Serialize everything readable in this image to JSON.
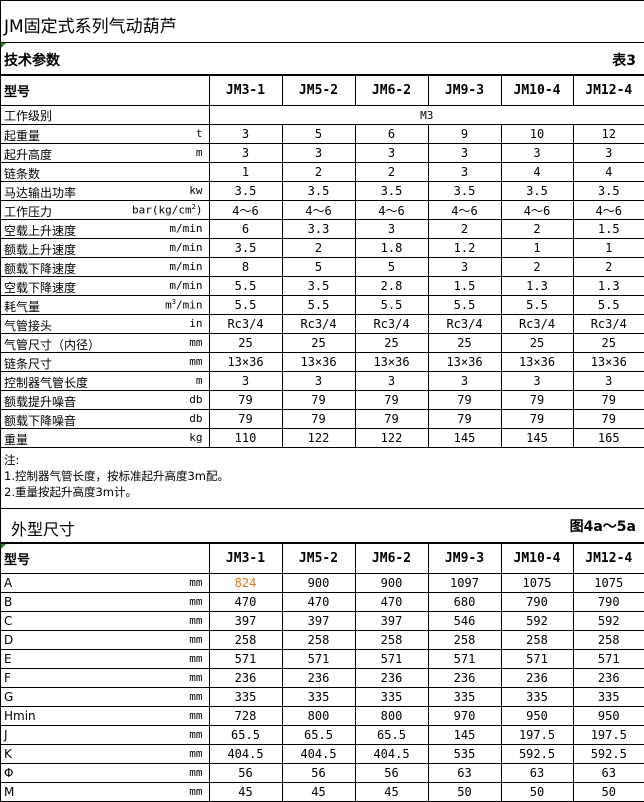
{
  "title": "JM固定式系列气动葫芦",
  "tech": {
    "section_title": "技术参数",
    "table_ref": "表3",
    "header_label": "型号",
    "models": [
      "JM3-1",
      "JM5-2",
      "JM6-2",
      "JM9-3",
      "JM10-4",
      "JM12-4"
    ],
    "work_class": {
      "label": "工作级别",
      "value": "M3"
    },
    "rows": [
      {
        "label": "起重量",
        "unit": "t",
        "values": [
          "3",
          "5",
          "6",
          "9",
          "10",
          "12"
        ]
      },
      {
        "label": "起升高度",
        "unit": "m",
        "values": [
          "3",
          "3",
          "3",
          "3",
          "3",
          "3"
        ]
      },
      {
        "label": "链条数",
        "unit": "",
        "values": [
          "1",
          "2",
          "2",
          "3",
          "4",
          "4"
        ]
      },
      {
        "label": "马达输出功率",
        "unit": "kw",
        "values": [
          "3.5",
          "3.5",
          "3.5",
          "3.5",
          "3.5",
          "3.5"
        ]
      },
      {
        "label": "工作压力",
        "unit": "bar(kg/cm²)",
        "values": [
          "4～6",
          "4～6",
          "4～6",
          "4～6",
          "4～6",
          "4～6"
        ]
      },
      {
        "label": "空载上升速度",
        "unit": "m/min",
        "values": [
          "6",
          "3.3",
          "3",
          "2",
          "2",
          "1.5"
        ]
      },
      {
        "label": "额载上升速度",
        "unit": "m/min",
        "values": [
          "3.5",
          "2",
          "1.8",
          "1.2",
          "1",
          "1"
        ]
      },
      {
        "label": "额载下降速度",
        "unit": "m/min",
        "values": [
          "8",
          "5",
          "5",
          "3",
          "2",
          "2"
        ]
      },
      {
        "label": "空载下降速度",
        "unit": "m/min",
        "values": [
          "5.5",
          "3.5",
          "2.8",
          "1.5",
          "1.3",
          "1.3"
        ]
      },
      {
        "label": "耗气量",
        "unit": "m³/min",
        "values": [
          "5.5",
          "5.5",
          "5.5",
          "5.5",
          "5.5",
          "5.5"
        ]
      },
      {
        "label": " 气管接头",
        "unit": "in",
        "values": [
          "Rc3/4",
          "Rc3/4",
          "Rc3/4",
          "Rc3/4",
          "Rc3/4",
          "Rc3/4"
        ]
      },
      {
        "label": "气管尺寸（内径）",
        "unit": "mm",
        "values": [
          "25",
          "25",
          "25",
          "25",
          "25",
          "25"
        ]
      },
      {
        "label": "链条尺寸",
        "unit": "mm",
        "values": [
          "13×36",
          "13×36",
          "13×36",
          "13×36",
          "13×36",
          "13×36"
        ]
      },
      {
        "label": "控制器气管长度",
        "unit": "m",
        "values": [
          "3",
          "3",
          "3",
          "3",
          "3",
          "3"
        ]
      },
      {
        "label": "额载提升噪音",
        "unit": "db",
        "values": [
          "79",
          "79",
          "79",
          "79",
          "79",
          "79"
        ]
      },
      {
        "label": "额载下降噪音",
        "unit": "db",
        "values": [
          "79",
          "79",
          "79",
          "79",
          "79",
          "79"
        ]
      },
      {
        "label": "重量",
        "unit": "kg",
        "values": [
          "110",
          "122",
          "122",
          "145",
          "145",
          "165"
        ]
      }
    ]
  },
  "notes": [
    "注:",
    "1.控制器气管长度，按标准起升高度3m配。",
    "2.重量按起升高度3m计。"
  ],
  "dims": {
    "section_title": "外型尺寸",
    "figure_ref": "图4a～5a",
    "header_label": "型号",
    "models": [
      "JM3-1",
      "JM5-2",
      "JM6-2",
      "JM9-3",
      "JM10-4",
      "JM12-4"
    ],
    "highlight_color": "#e87511",
    "rows": [
      {
        "label": "A",
        "unit": "mm",
        "values": [
          "824",
          "900",
          "900",
          "1097",
          "1075",
          "1075"
        ],
        "highlight_first": true
      },
      {
        "label": "B",
        "unit": "mm",
        "values": [
          "470",
          "470",
          "470",
          "680",
          "790",
          "790"
        ]
      },
      {
        "label": "C",
        "unit": "mm",
        "values": [
          "397",
          "397",
          "397",
          "546",
          "592",
          "592"
        ]
      },
      {
        "label": "D",
        "unit": "mm",
        "values": [
          "258",
          "258",
          "258",
          "258",
          "258",
          "258"
        ]
      },
      {
        "label": "E",
        "unit": "mm",
        "values": [
          "571",
          "571",
          "571",
          "571",
          "571",
          "571"
        ]
      },
      {
        "label": "F",
        "unit": "mm",
        "values": [
          "236",
          "236",
          "236",
          "236",
          "236",
          "236"
        ]
      },
      {
        "label": "G",
        "unit": "mm",
        "values": [
          "335",
          "335",
          "335",
          "335",
          "335",
          "335"
        ]
      },
      {
        "label": "Hmin",
        "unit": "mm",
        "values": [
          "728",
          "800",
          "800",
          "970",
          "950",
          "950"
        ]
      },
      {
        "label": "J",
        "unit": "mm",
        "values": [
          "65.5",
          "65.5",
          "65.5",
          "145",
          "197.5",
          "197.5"
        ]
      },
      {
        "label": "K",
        "unit": "mm",
        "values": [
          "404.5",
          "404.5",
          "404.5",
          "535",
          "592.5",
          "592.5"
        ]
      },
      {
        "label": " Φ",
        "unit": "mm",
        "values": [
          "56",
          "56",
          "56",
          "63",
          "63",
          "63"
        ]
      },
      {
        "label": "M",
        "unit": "mm",
        "values": [
          "45",
          "45",
          "45",
          "50",
          "50",
          "50"
        ]
      }
    ]
  }
}
